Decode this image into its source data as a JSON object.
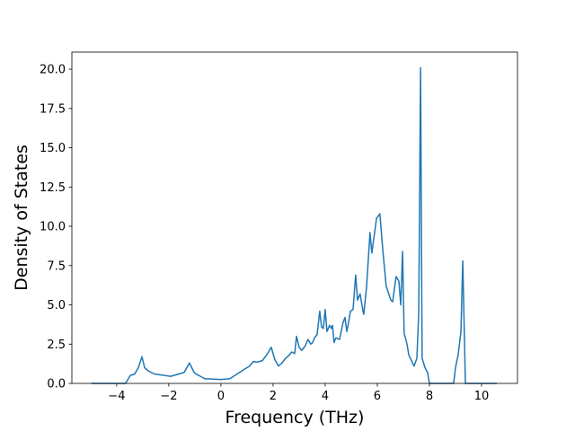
{
  "chart_data": {
    "type": "line",
    "xlabel": "Frequency (THz)",
    "ylabel": "Density of States",
    "color": "#1f77b4",
    "x": [
      -4.97,
      -3.66,
      -3.48,
      -3.31,
      -3.17,
      -3.03,
      -2.93,
      -2.79,
      -2.55,
      -1.93,
      -1.41,
      -1.21,
      -1.03,
      -0.9,
      -0.62,
      0,
      0.34,
      0.62,
      0.9,
      1.1,
      1.24,
      1.38,
      1.59,
      1.79,
      1.93,
      2.07,
      2.21,
      2.34,
      2.48,
      2.62,
      2.72,
      2.83,
      2.9,
      3.0,
      3.1,
      3.24,
      3.34,
      3.45,
      3.52,
      3.59,
      3.69,
      3.79,
      3.86,
      3.93,
      4.0,
      4.07,
      4.17,
      4.24,
      4.28,
      4.34,
      4.41,
      4.55,
      4.69,
      4.76,
      4.83,
      4.9,
      4.97,
      5.07,
      5.17,
      5.24,
      5.34,
      5.45,
      5.48,
      5.59,
      5.72,
      5.79,
      5.97,
      6.1,
      6.21,
      6.34,
      6.52,
      6.59,
      6.72,
      6.83,
      6.9,
      6.97,
      7.03,
      7.14,
      7.21,
      7.41,
      7.52,
      7.59,
      7.66,
      7.72,
      7.83,
      7.93,
      8.0,
      8.93,
      9.0,
      9.1,
      9.21,
      9.28,
      9.38,
      10.59
    ],
    "values": [
      0,
      0,
      0.5,
      0.6,
      1.0,
      1.7,
      1.0,
      0.8,
      0.6,
      0.45,
      0.7,
      1.3,
      0.7,
      0.55,
      0.3,
      0.25,
      0.3,
      0.6,
      0.9,
      1.1,
      1.4,
      1.35,
      1.45,
      1.9,
      2.3,
      1.5,
      1.1,
      1.3,
      1.6,
      1.8,
      2.0,
      1.9,
      3.0,
      2.3,
      2.1,
      2.4,
      2.8,
      2.5,
      2.6,
      2.9,
      3.1,
      4.6,
      3.6,
      3.5,
      4.7,
      3.3,
      3.7,
      3.5,
      3.7,
      2.6,
      2.9,
      2.8,
      3.9,
      4.2,
      3.3,
      3.9,
      4.6,
      4.7,
      6.9,
      5.3,
      5.7,
      4.6,
      4.4,
      6.2,
      9.6,
      8.3,
      10.5,
      10.8,
      8.5,
      6.2,
      5.3,
      5.2,
      6.8,
      6.5,
      5.0,
      8.4,
      3.2,
      2.5,
      1.8,
      1.1,
      1.6,
      4.5,
      20.1,
      1.6,
      1.0,
      0.7,
      0,
      0,
      1.0,
      1.8,
      3.3,
      7.8,
      0,
      0
    ],
    "xlim": [
      -5.72,
      11.38
    ],
    "ylim": [
      0,
      21.09
    ],
    "xticks": [
      {
        "value": -4,
        "label": "−4"
      },
      {
        "value": -2,
        "label": "−2"
      },
      0,
      2,
      4,
      6,
      8,
      10
    ],
    "yticks": [
      {
        "value": 0,
        "label": "0.0"
      },
      {
        "value": 2.5,
        "label": "2.5"
      },
      {
        "value": 5,
        "label": "5.0"
      },
      {
        "value": 7.5,
        "label": "7.5"
      },
      {
        "value": 10,
        "label": "10.0"
      },
      {
        "value": 12.5,
        "label": "12.5"
      },
      {
        "value": 15,
        "label": "15.0"
      },
      {
        "value": 17.5,
        "label": "17.5"
      },
      {
        "value": 20,
        "label": "20.0"
      }
    ],
    "grid": false
  }
}
